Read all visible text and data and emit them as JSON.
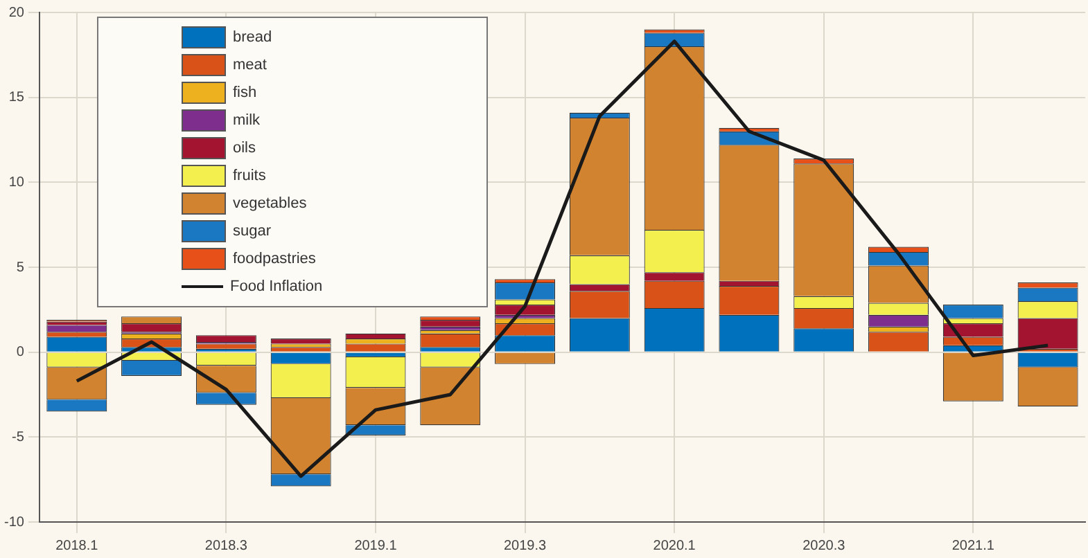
{
  "chart_data": {
    "type": "bar",
    "stacked": true,
    "grid": true,
    "legend": "top left",
    "marker": "none",
    "categories": [
      "2018.1",
      null,
      "2018.3",
      null,
      "2019.1",
      null,
      "2019.3",
      null,
      "2020.1",
      null,
      "2020.3",
      null,
      "2021.1",
      null
    ],
    "ylim": [
      -10,
      20
    ],
    "yticks": [
      -10,
      -5,
      0,
      5,
      10,
      15,
      20
    ],
    "series": [
      {
        "name": "bread",
        "color": "#0072bd",
        "values": [
          0.9,
          0.3,
          0.2,
          -0.7,
          -0.3,
          0.3,
          1.0,
          2.0,
          2.6,
          2.2,
          1.4,
          0,
          0.4,
          -0.9
        ]
      },
      {
        "name": "meat",
        "color": "#d95319",
        "values": [
          0.3,
          0.5,
          0.3,
          0.3,
          0.5,
          0.8,
          0.7,
          1.6,
          1.6,
          1.7,
          1.2,
          1.2,
          0.5,
          0.2
        ]
      },
      {
        "name": "fish",
        "color": "#edb120",
        "values": [
          0,
          0.3,
          0,
          0.2,
          0.3,
          0.2,
          0.3,
          0,
          0,
          0,
          0,
          0.3,
          0,
          0
        ]
      },
      {
        "name": "milk",
        "color": "#7e2f8e",
        "values": [
          0.4,
          0.1,
          0.1,
          0,
          0,
          0.2,
          0.2,
          0,
          0,
          0,
          0,
          0.7,
          0,
          0
        ]
      },
      {
        "name": "oils",
        "color": "#a2142f",
        "values": [
          0.2,
          0.5,
          0.4,
          0.3,
          0.3,
          0.4,
          0.6,
          0.4,
          0.5,
          0.3,
          0,
          0,
          0.8,
          1.8
        ]
      },
      {
        "name": "fruits",
        "color": "#f2ef4f",
        "values": [
          -0.9,
          -0.5,
          -0.8,
          -2.0,
          -1.8,
          -0.9,
          0.3,
          1.7,
          2.5,
          0,
          0.7,
          0.7,
          0.3,
          1.0
        ]
      },
      {
        "name": "vegetables",
        "color": "#d2832f",
        "values": [
          -1.9,
          0.4,
          -1.6,
          -4.5,
          -2.2,
          -3.4,
          -0.7,
          8.1,
          10.8,
          8.0,
          7.8,
          2.2,
          -2.9,
          -2.3
        ]
      },
      {
        "name": "sugar",
        "color": "#1a78c2",
        "values": [
          -0.7,
          -0.9,
          -0.7,
          -0.7,
          -0.6,
          0,
          1.0,
          0.3,
          0.8,
          0.8,
          0,
          0.8,
          0.8,
          0.8
        ]
      },
      {
        "name": "foodpastries",
        "color": "#e8501a",
        "values": [
          0.1,
          0,
          0,
          0,
          0,
          0.2,
          0.2,
          0,
          0.2,
          0.2,
          0.3,
          0.3,
          0,
          0.3
        ]
      },
      {
        "name": "Food Inflation",
        "type": "line",
        "color": "#1a1a1a",
        "values": [
          -1.7,
          0.6,
          -2.2,
          -7.3,
          -3.4,
          -2.5,
          2.7,
          13.9,
          18.3,
          13.0,
          11.3,
          5.8,
          -0.2,
          0.4
        ]
      }
    ]
  }
}
